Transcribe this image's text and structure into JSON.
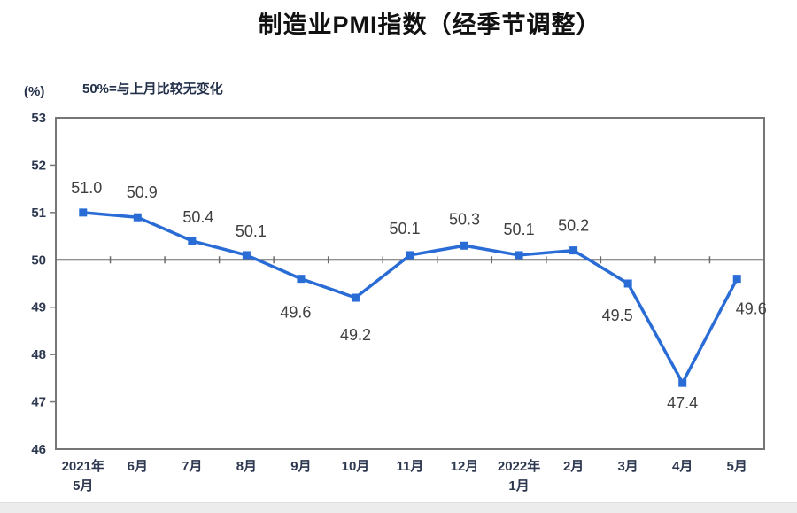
{
  "chart_data": {
    "type": "line",
    "title": "制造业PMI指数（经季节调整）",
    "subtitle": "50%=与上月比较无变化",
    "unit_label": "(%)",
    "categories": [
      [
        "2021年",
        "5月"
      ],
      "6月",
      "7月",
      "8月",
      "9月",
      "10月",
      "11月",
      "12月",
      [
        "2022年",
        "1月"
      ],
      "2月",
      "3月",
      "4月",
      "5月"
    ],
    "series": [
      {
        "name": "制造业PMI指数",
        "values": [
          51.0,
          50.9,
          50.4,
          50.1,
          49.6,
          49.2,
          50.1,
          50.3,
          50.1,
          50.2,
          49.5,
          47.4,
          49.6
        ]
      }
    ],
    "data_labels": [
      "51.0",
      "50.9",
      "50.4",
      "50.1",
      "49.6",
      "49.2",
      "50.1",
      "50.3",
      "50.1",
      "50.2",
      "49.5",
      "47.4",
      "49.6"
    ],
    "xlabel": "",
    "ylabel": "(%)",
    "ylim": [
      46,
      53
    ],
    "yticks": [
      46,
      47,
      48,
      49,
      50,
      51,
      52,
      53
    ],
    "reference_line": 50,
    "grid": false,
    "legend": "none",
    "marker": "square",
    "colors": {
      "line": "#2a6cd5",
      "frame": "#767676",
      "reference": "#6b6b6b",
      "data_label": "#3f3f3f",
      "axis_label": "#2d3850"
    }
  }
}
